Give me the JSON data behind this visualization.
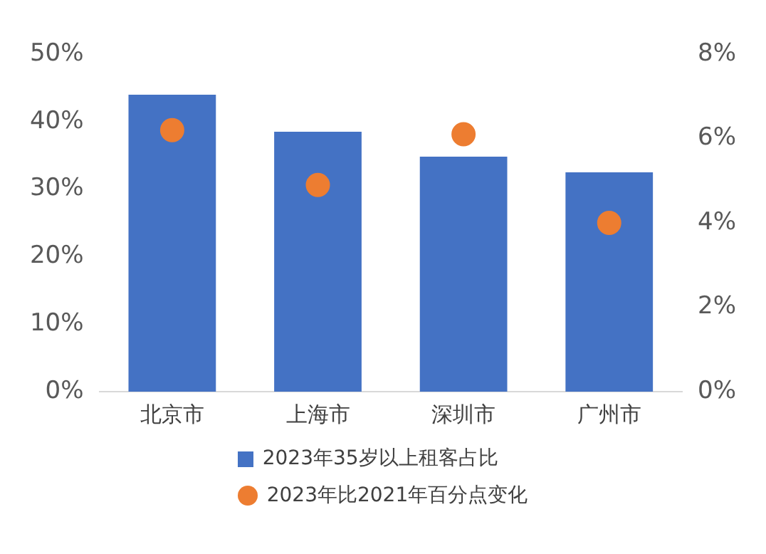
{
  "chart_data": {
    "type": "bar",
    "categories": [
      "北京市",
      "上海市",
      "深圳市",
      "广州市"
    ],
    "series": [
      {
        "name": "2023年35岁以上租客占比",
        "color": "#4472c4",
        "values": [
          44.0,
          38.5,
          34.8,
          32.5
        ]
      },
      {
        "name": "2023年比2021年百分点变化",
        "type": "scatter",
        "axis": "y2",
        "color": "#ed7d31",
        "x": [
          "北京市",
          "上海市",
          "深圳市",
          "广州市"
        ],
        "values": [
          6.2,
          4.9,
          6.1,
          4.0
        ]
      }
    ],
    "ylim": [
      0,
      50
    ],
    "yticks": [
      {
        "value": 0,
        "label": "0%"
      },
      {
        "value": 10,
        "label": "10%"
      },
      {
        "value": 20,
        "label": "20%"
      },
      {
        "value": 30,
        "label": "30%"
      },
      {
        "value": 40,
        "label": "40%"
      },
      {
        "value": 50,
        "label": "50%"
      }
    ],
    "y2lim": [
      0,
      8
    ],
    "y2ticks": [
      {
        "value": 0,
        "label": "0%"
      },
      {
        "value": 2,
        "label": "2%"
      },
      {
        "value": 4,
        "label": "4%"
      },
      {
        "value": 6,
        "label": "6%"
      },
      {
        "value": 8,
        "label": "8%"
      }
    ],
    "grid": false,
    "legend": "bottom",
    "marker": "circle"
  }
}
